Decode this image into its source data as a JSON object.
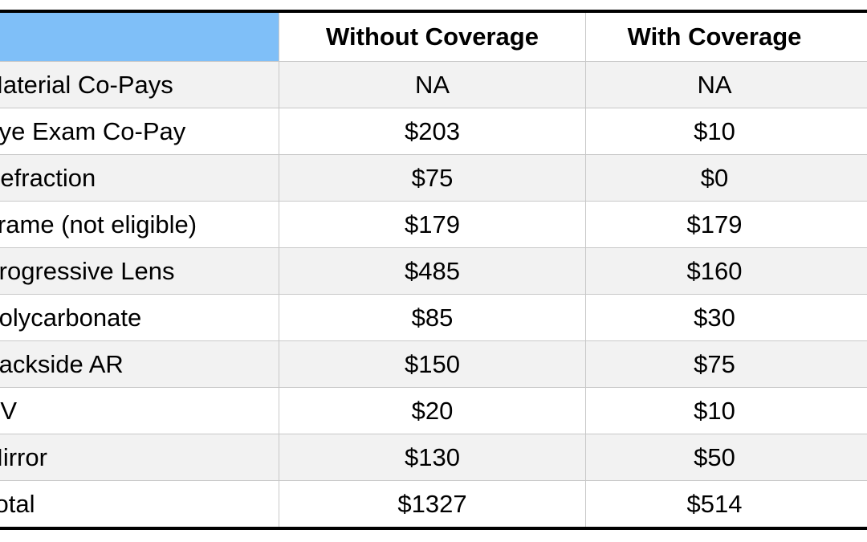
{
  "table": {
    "headers": [
      "",
      "Without Coverage",
      "With Coverage"
    ],
    "rows": [
      [
        "Material Co-Pays",
        "NA",
        "NA"
      ],
      [
        "Eye Exam Co-Pay",
        "$203",
        "$10"
      ],
      [
        "Refraction",
        "$75",
        "$0"
      ],
      [
        "Frame (not eligible)",
        "$179",
        "$179"
      ],
      [
        "Progressive Lens",
        "$485",
        "$160"
      ],
      [
        "Polycarbonate",
        "$85",
        "$30"
      ],
      [
        "Backside AR",
        "$150",
        "$75"
      ],
      [
        "UV",
        "$20",
        "$10"
      ],
      [
        "Mirror",
        "$130",
        "$50"
      ],
      [
        "Total",
        "$1327",
        "$514"
      ]
    ]
  },
  "colors": {
    "header_accent": "#7fbff8",
    "row_alt": "#f2f2f2",
    "grid": "#c8c8c8",
    "rule": "#000000"
  }
}
